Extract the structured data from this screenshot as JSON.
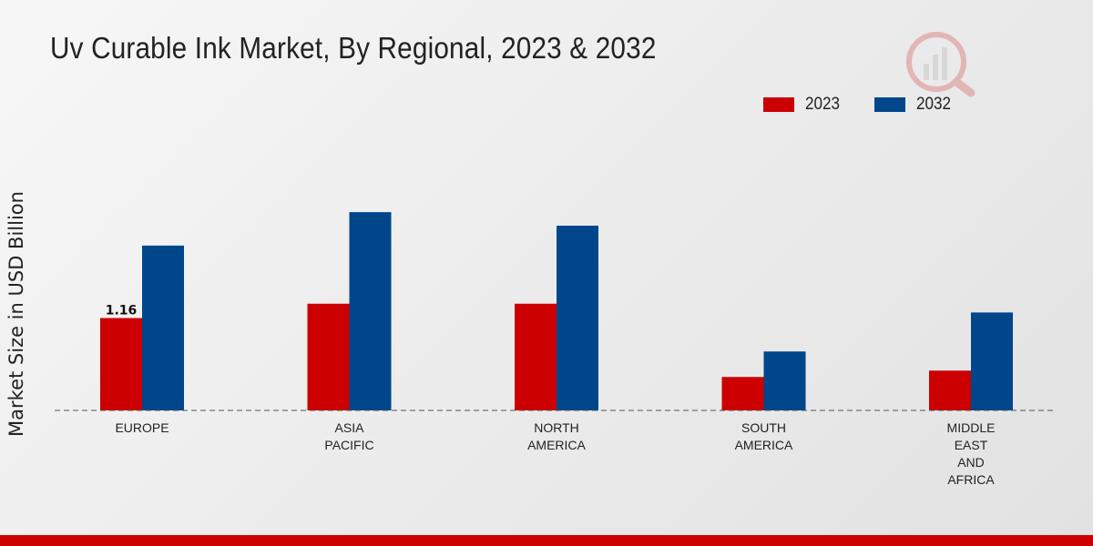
{
  "chart_data": {
    "type": "bar",
    "title": "Uv Curable Ink Market, By Regional, 2023 & 2032",
    "xlabel": "",
    "ylabel": "Market Size in USD Billion",
    "categories": [
      "EUROPE",
      "ASIA\nPACIFIC",
      "NORTH\nAMERICA",
      "SOUTH\nAMERICA",
      "MIDDLE\nEAST\nAND\nAFRICA"
    ],
    "series": [
      {
        "name": "2023",
        "color": "#cc0000",
        "values": [
          1.16,
          1.34,
          1.34,
          0.42,
          0.5
        ]
      },
      {
        "name": "2032",
        "color": "#00468b",
        "values": [
          2.07,
          2.49,
          2.32,
          0.74,
          1.23
        ]
      }
    ],
    "data_labels": [
      {
        "series": "2023",
        "category_index": 0,
        "text": "1.16"
      }
    ],
    "ylim": [
      0,
      4.0
    ],
    "grid": false,
    "legend_position": "top-right"
  }
}
